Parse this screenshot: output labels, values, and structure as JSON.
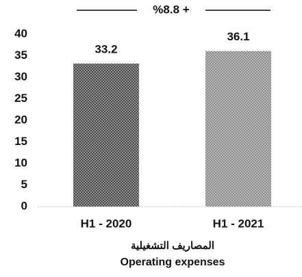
{
  "chart_data": {
    "type": "bar",
    "annotation": "%8.8 +",
    "categories": [
      "H1 - 2020",
      "H1 - 2021"
    ],
    "values": [
      33.2,
      36.1
    ],
    "colors": [
      "#4a4a4a",
      "#8e8e8e"
    ],
    "ylim": [
      0,
      40
    ],
    "yticks": [
      0,
      5,
      10,
      15,
      20,
      25,
      30,
      35,
      40
    ],
    "xlabel": [
      "المصاريف التشغيلية",
      "Operating expenses"
    ],
    "grid": false
  }
}
